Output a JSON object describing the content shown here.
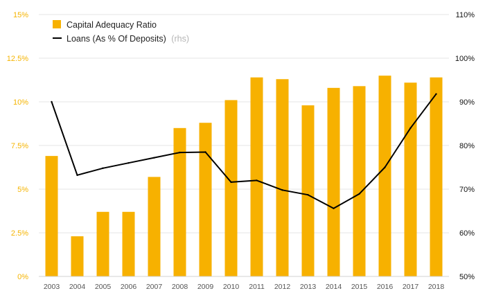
{
  "chart_data": {
    "type": "bar",
    "categories": [
      "2003",
      "2004",
      "2005",
      "2006",
      "2007",
      "2008",
      "2009",
      "2010",
      "2011",
      "2012",
      "2013",
      "2014",
      "2015",
      "2016",
      "2017",
      "2018"
    ],
    "series": [
      {
        "name": "Capital Adequacy Ratio",
        "type": "bar",
        "axis": "left",
        "color": "#f7b100",
        "values": [
          6.9,
          2.3,
          3.7,
          3.7,
          5.7,
          8.5,
          8.8,
          10.1,
          11.4,
          11.3,
          9.8,
          10.8,
          10.9,
          11.5,
          11.1,
          11.4
        ]
      },
      {
        "name": "Loans (As % Of Deposits)",
        "name_note": "(rhs)",
        "type": "line",
        "axis": "right",
        "color": "#000000",
        "values": [
          90.0,
          73.2,
          74.8,
          76.0,
          77.2,
          78.4,
          78.5,
          71.6,
          72.0,
          69.8,
          68.7,
          65.6,
          68.9,
          75.0,
          84.0,
          91.8
        ]
      }
    ],
    "y_left": {
      "ylim": [
        0,
        15
      ],
      "ticks": [
        "0%",
        "2.5%",
        "5%",
        "7.5%",
        "10%",
        "12.5%",
        "15%"
      ],
      "color": "#f5b400"
    },
    "y_right": {
      "ylim": [
        50,
        110
      ],
      "ticks": [
        "50%",
        "60%",
        "70%",
        "80%",
        "90%",
        "100%",
        "110%"
      ],
      "color": "#111111"
    },
    "grid": true,
    "legend_position": "top-left"
  }
}
